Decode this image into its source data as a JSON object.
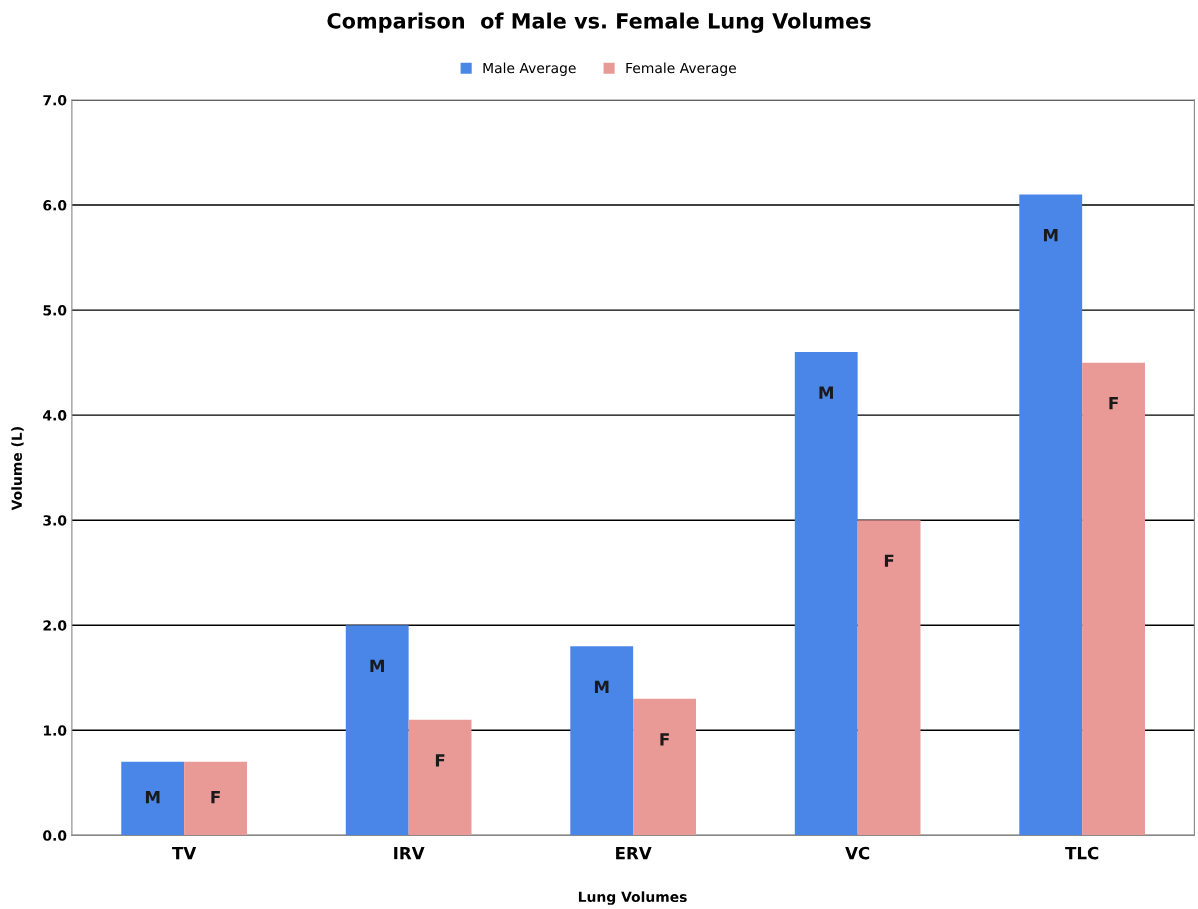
{
  "chart_data": {
    "type": "bar",
    "title": "Comparison  of Male vs. Female Lung Volumes",
    "xlabel": "Lung Volumes",
    "ylabel": "Volume (L)",
    "categories": [
      "TV",
      "IRV",
      "ERV",
      "VC",
      "TLC"
    ],
    "series": [
      {
        "name": "Male Average",
        "color": "#4a86e8",
        "values": [
          0.7,
          2.0,
          1.8,
          4.6,
          6.1
        ],
        "value_labels": [
          "M",
          "M",
          "M",
          "M",
          "M"
        ]
      },
      {
        "name": "Female Average",
        "color": "#e99a97",
        "values": [
          0.7,
          1.1,
          1.3,
          3.0,
          4.5
        ],
        "value_labels": [
          "F",
          "F",
          "F",
          "F",
          "F"
        ]
      }
    ],
    "ylim": [
      0,
      7
    ],
    "yticks": [
      {
        "value": 0,
        "label": "0.0"
      },
      {
        "value": 1,
        "label": "1.0"
      },
      {
        "value": 2,
        "label": "2.0"
      },
      {
        "value": 3,
        "label": "3.0"
      },
      {
        "value": 4,
        "label": "4.0"
      },
      {
        "value": 5,
        "label": "5.0"
      },
      {
        "value": 6,
        "label": "6.0"
      },
      {
        "value": 7,
        "label": "7.0"
      }
    ],
    "grid": "y",
    "legend": "top"
  }
}
